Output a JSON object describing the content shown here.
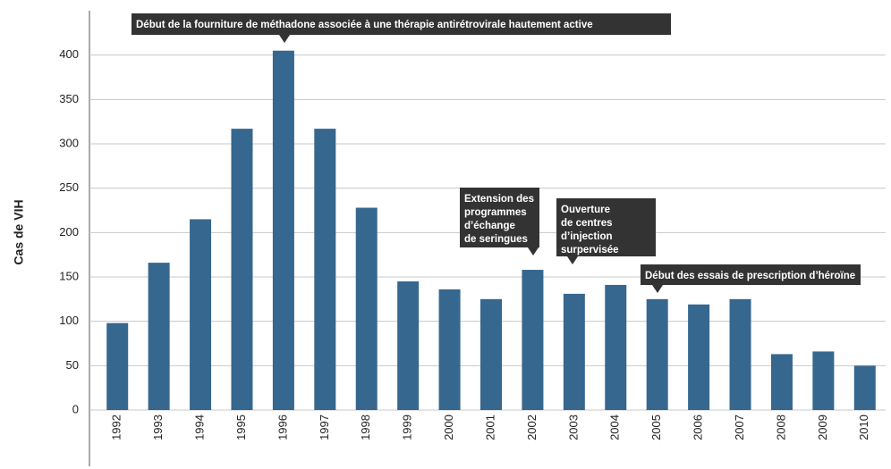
{
  "chart_data": {
    "type": "bar",
    "y_label": "Cas de VIH",
    "categories": [
      "1992",
      "1993",
      "1994",
      "1995",
      "1996",
      "1997",
      "1998",
      "1999",
      "2000",
      "2001",
      "2002",
      "2003",
      "2004",
      "2005",
      "2006",
      "2007",
      "2008",
      "2009",
      "2010"
    ],
    "values": [
      98,
      166,
      215,
      317,
      405,
      317,
      228,
      145,
      136,
      125,
      158,
      131,
      141,
      125,
      119,
      125,
      63,
      66,
      50
    ],
    "color": "#36678f",
    "ylim": [
      0,
      450
    ],
    "yticks": [
      0,
      50,
      100,
      150,
      200,
      250,
      300,
      350,
      400
    ],
    "grid": true,
    "annotations": [
      {
        "lines": [
          "Début de la fourniture de méthadone associée à une thérapie antirétrovirale hautement active"
        ]
      },
      {
        "lines": [
          "Extension des",
          "programmes",
          "d’échange",
          "de seringues"
        ]
      },
      {
        "lines": [
          "Ouverture",
          "de centres",
          "d’injection",
          "surpervisée"
        ]
      },
      {
        "lines": [
          "Début des essais de prescription d’héroïne"
        ]
      }
    ]
  }
}
